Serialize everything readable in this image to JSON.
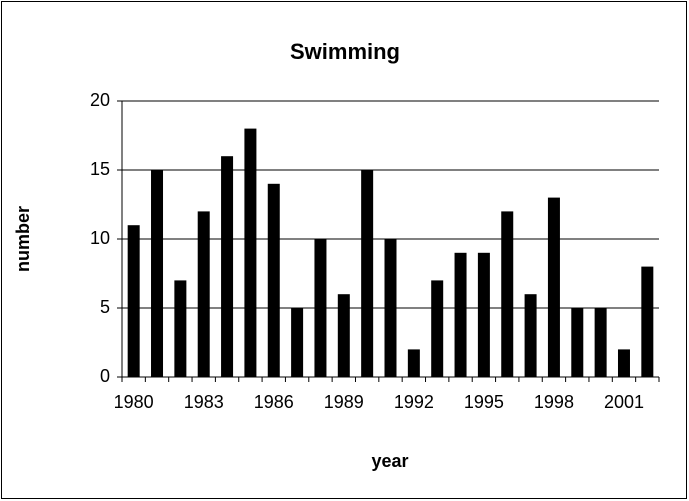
{
  "chart_data": {
    "type": "bar",
    "title": "Swimming",
    "x_label": "year",
    "y_label": "number",
    "categories": [
      "1980",
      null,
      null,
      "1983",
      null,
      null,
      "1986",
      null,
      null,
      "1989",
      null,
      null,
      "1992",
      null,
      null,
      "1995",
      null,
      null,
      "1998",
      null,
      null,
      "2001",
      null
    ],
    "values": [
      11,
      15,
      7,
      12,
      16,
      18,
      14,
      5,
      10,
      6,
      15,
      10,
      2,
      7,
      9,
      9,
      12,
      6,
      13,
      5,
      5,
      2,
      8
    ],
    "color": "#000000",
    "ylim": [
      0,
      20
    ],
    "yticks": [
      0,
      5,
      10,
      15,
      20
    ],
    "grid": true
  }
}
